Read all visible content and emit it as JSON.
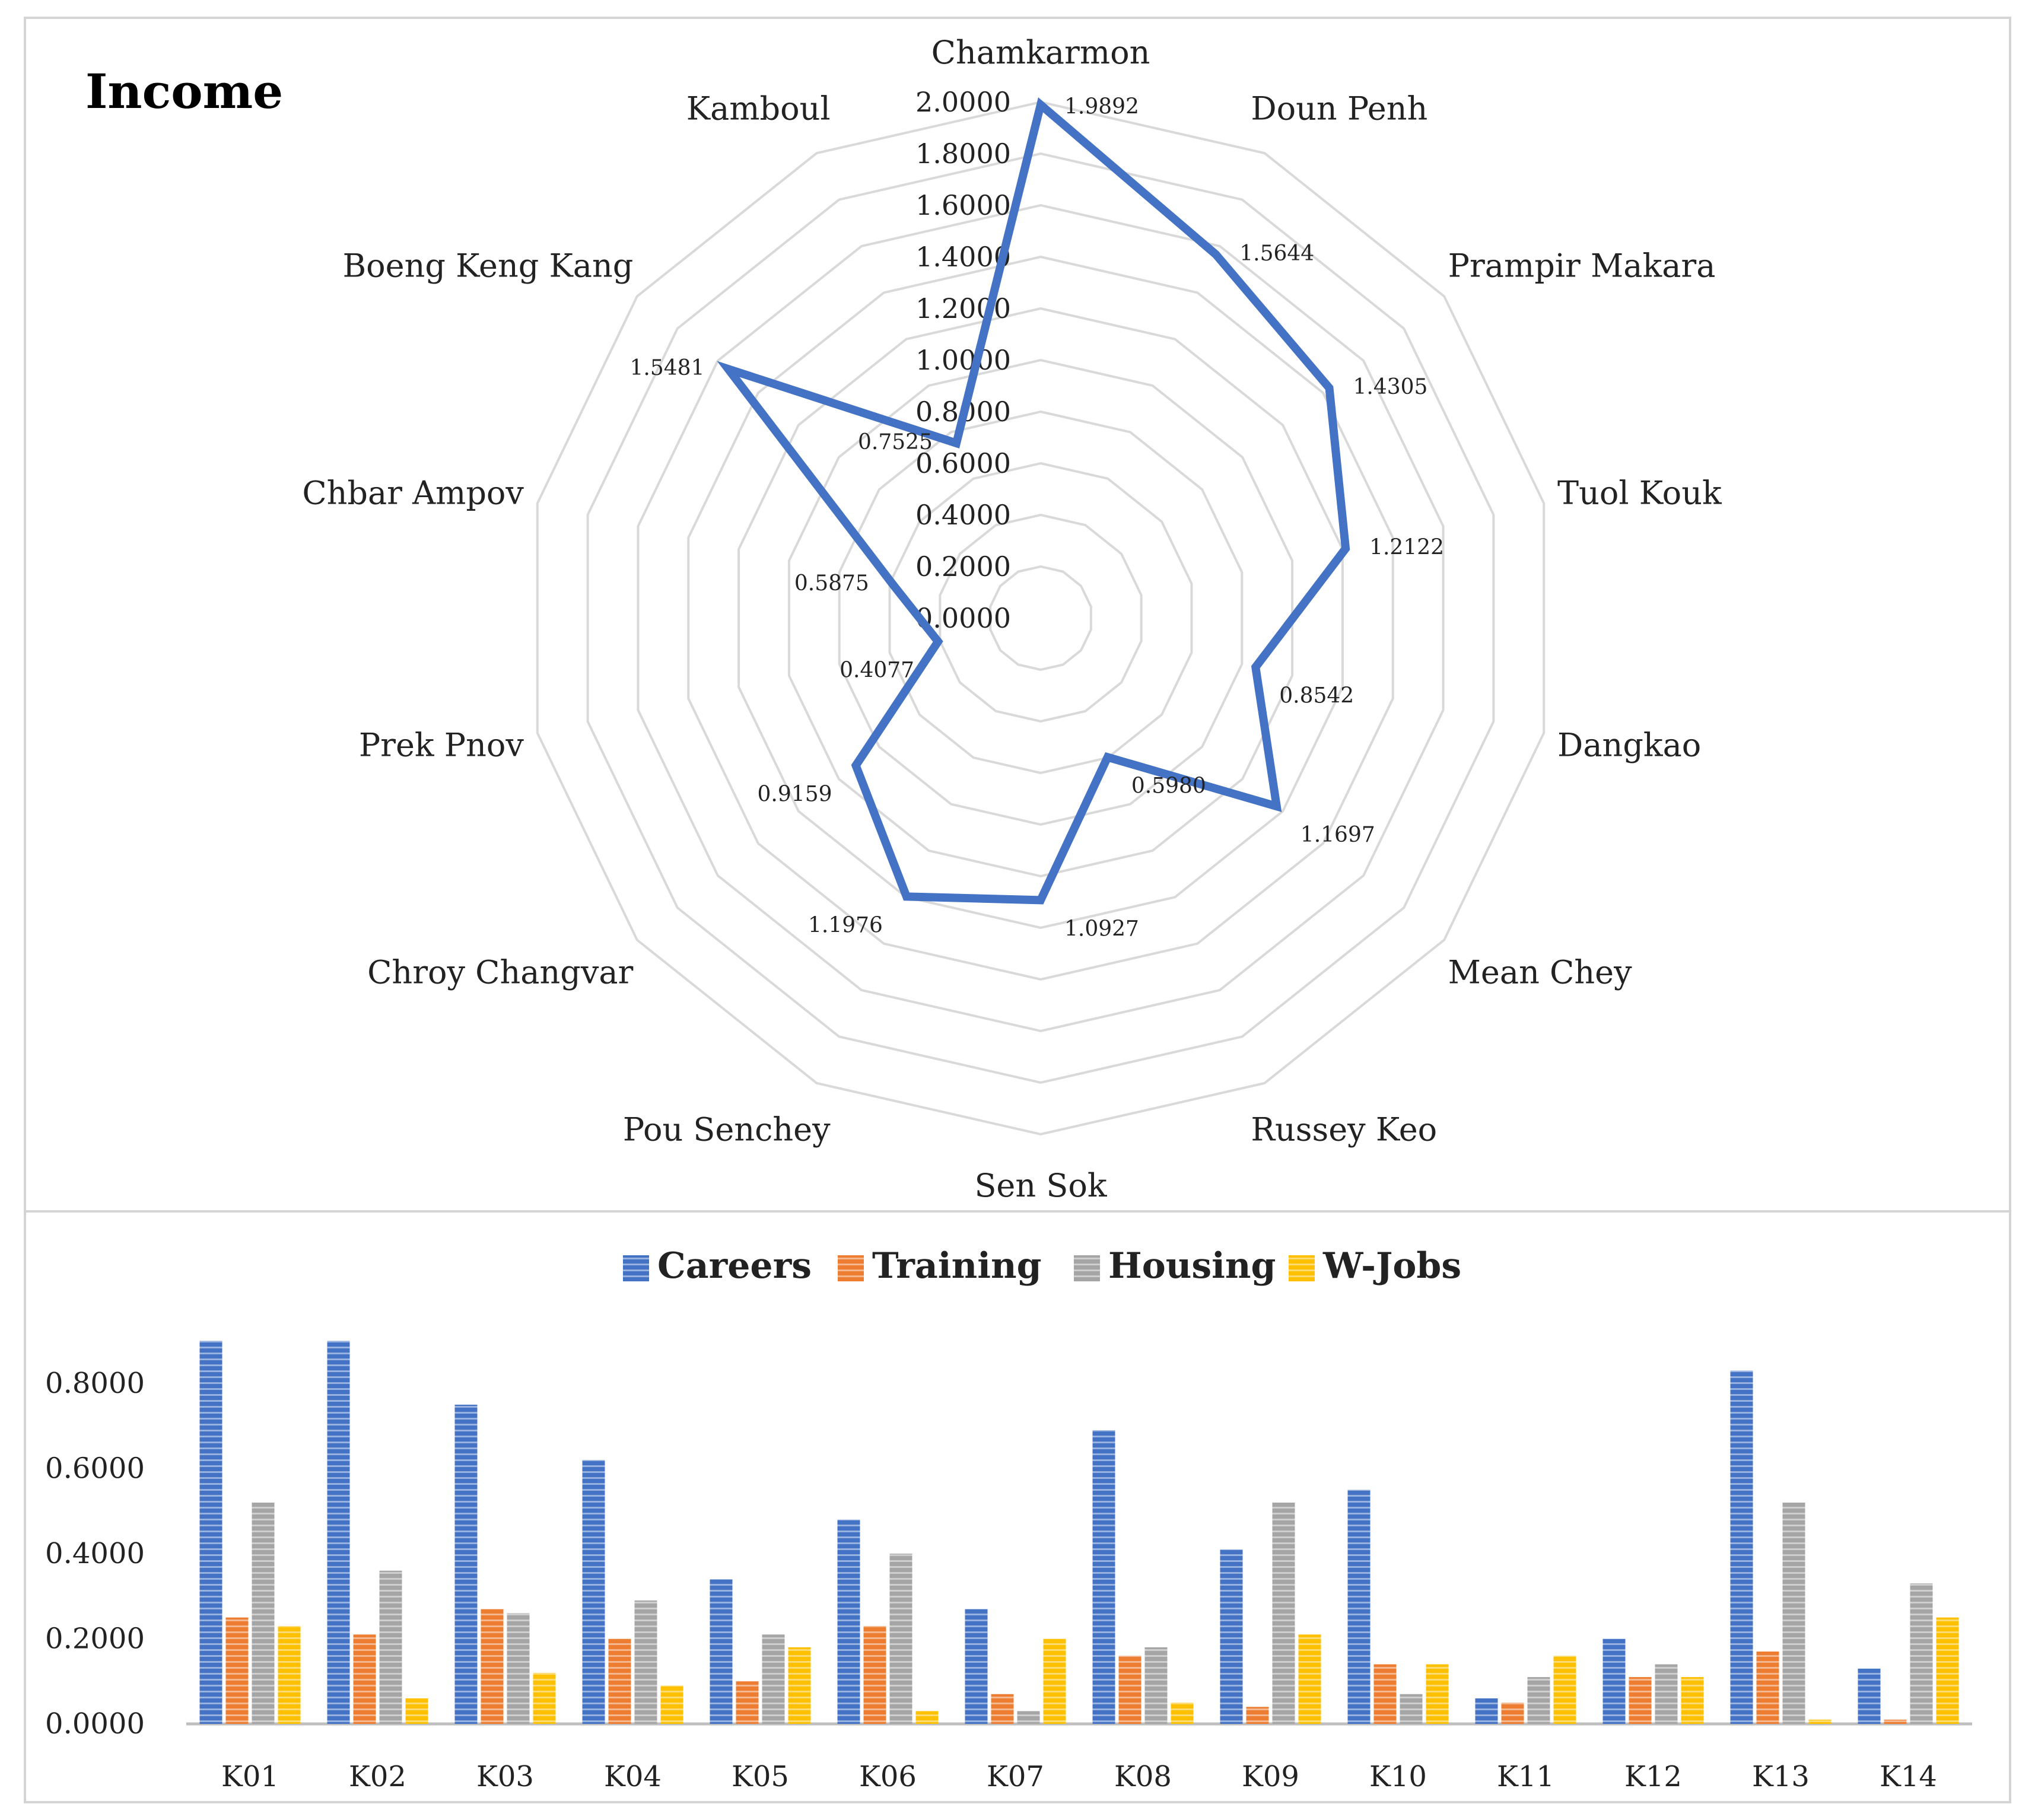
{
  "chart_data": [
    {
      "type": "radar",
      "title": "Income",
      "categories": [
        "Chamkarmon",
        "Doun Penh",
        "Prampir Makara",
        "Tuol Kouk",
        "Dangkao",
        "Mean Chey",
        "Russey Keo",
        "Sen Sok",
        "Pou Senchey",
        "Chroy Changvar",
        "Prek Pnov",
        "Chbar Ampov",
        "Boeng Keng Kang",
        "Kamboul"
      ],
      "values": [
        1.9892,
        1.5644,
        1.4305,
        1.2122,
        0.8542,
        1.1697,
        0.598,
        1.0927,
        1.1976,
        0.9159,
        0.4077,
        0.5875,
        1.5481,
        0.7525
      ],
      "value_labels": [
        "1.9892",
        "1.5644",
        "1.4305",
        "1.2122",
        "0.8542",
        "1.1697",
        "0.5980",
        "1.0927",
        "1.1976",
        "0.9159",
        "0.4077",
        "0.5875",
        "1.5481",
        "0.7525"
      ],
      "rlim": [
        0,
        2
      ],
      "ticks": [
        "0.0000",
        "0.2000",
        "0.4000",
        "0.6000",
        "0.8000",
        "1.0000",
        "1.2000",
        "1.4000",
        "1.6000",
        "1.8000",
        "2.0000"
      ],
      "line_color": "#4472C4",
      "grid_color": "#d9d9d9",
      "grid": true
    },
    {
      "type": "bar",
      "categories": [
        "K01",
        "K02",
        "K03",
        "K04",
        "K05",
        "K06",
        "K07",
        "K08",
        "K09",
        "K10",
        "K11",
        "K12",
        "K13",
        "K14"
      ],
      "series": [
        {
          "name": "Careers",
          "color": "#4472C4",
          "values": [
            0.9,
            0.9,
            0.75,
            0.62,
            0.34,
            0.48,
            0.27,
            0.69,
            0.41,
            0.55,
            0.06,
            0.2,
            0.83,
            0.13
          ]
        },
        {
          "name": "Training",
          "color": "#ED7D31",
          "values": [
            0.25,
            0.21,
            0.27,
            0.2,
            0.1,
            0.23,
            0.07,
            0.16,
            0.04,
            0.14,
            0.05,
            0.11,
            0.17,
            0.01
          ]
        },
        {
          "name": "Housing",
          "color": "#A5A5A5",
          "values": [
            0.52,
            0.36,
            0.26,
            0.29,
            0.21,
            0.4,
            0.03,
            0.18,
            0.52,
            0.07,
            0.11,
            0.14,
            0.52,
            0.33
          ]
        },
        {
          "name": "W-Jobs",
          "color": "#FFC000",
          "values": [
            0.23,
            0.06,
            0.12,
            0.09,
            0.18,
            0.03,
            0.2,
            0.05,
            0.21,
            0.14,
            0.16,
            0.11,
            0.01,
            0.25
          ]
        }
      ],
      "ylim": [
        0,
        0.8
      ],
      "yticks": [
        "0.0000",
        "0.2000",
        "0.4000",
        "0.6000",
        "0.8000"
      ],
      "legend_position": "top-center",
      "grid": false
    }
  ]
}
